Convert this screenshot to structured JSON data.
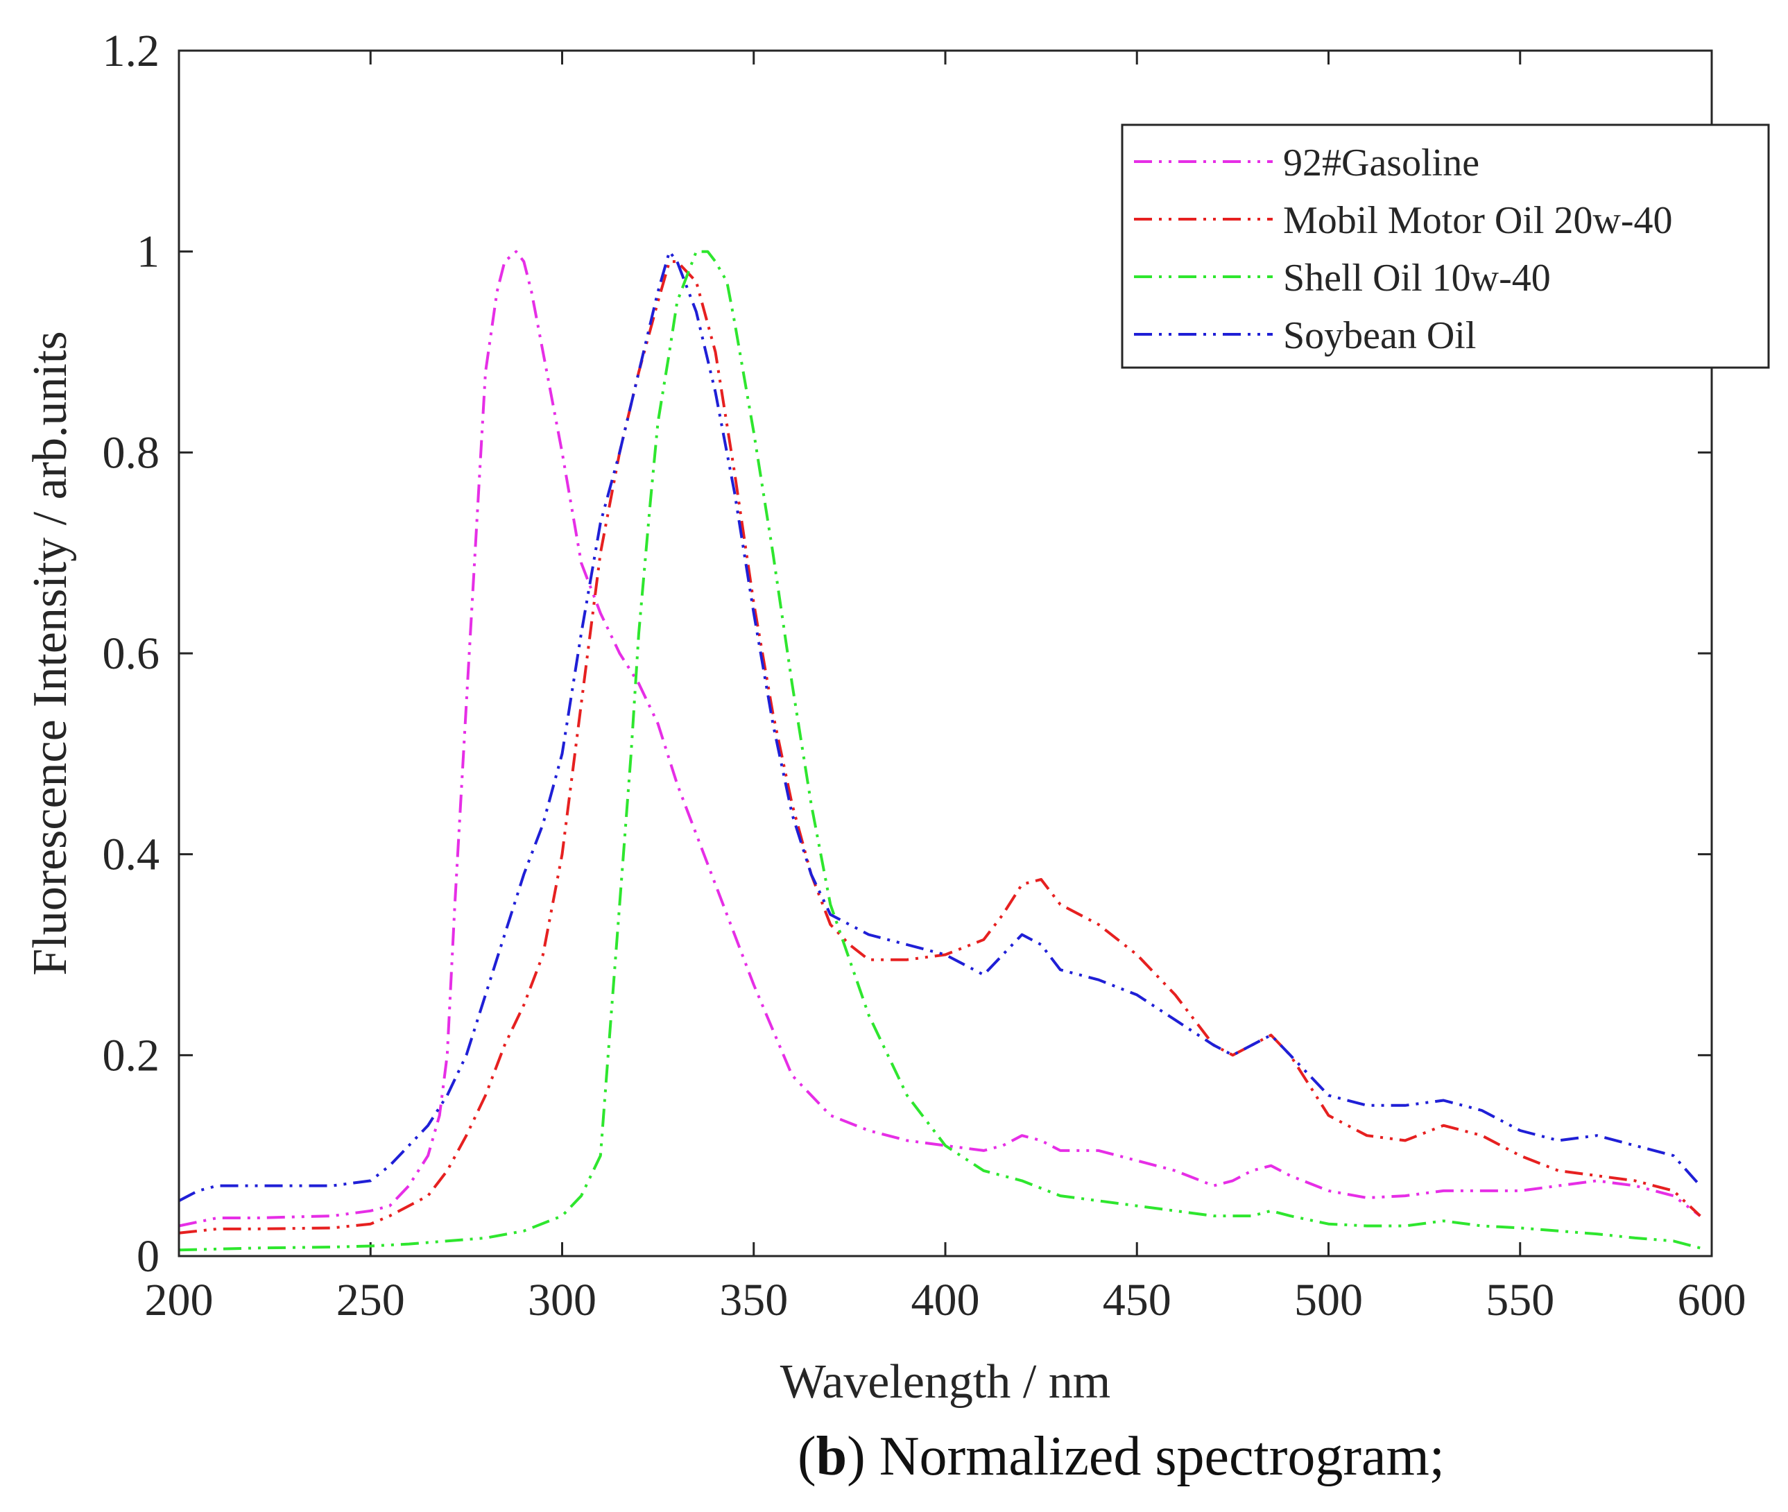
{
  "chart_data": {
    "type": "line",
    "title": "",
    "xlabel": "Wavelength / nm",
    "ylabel": "Fluorescence Intensity / arb.units",
    "xlim": [
      200,
      600
    ],
    "ylim": [
      0,
      1.2
    ],
    "xticks": [
      200,
      250,
      300,
      350,
      400,
      450,
      500,
      550,
      600
    ],
    "xtick_labels": [
      "200",
      "250",
      "300",
      "350",
      "400",
      "450",
      "500",
      "550",
      "600"
    ],
    "yticks": [
      0,
      0.2,
      0.4,
      0.6,
      0.8,
      1,
      1.2
    ],
    "ytick_labels": [
      "0",
      "0.2",
      "0.4",
      "0.6",
      "0.8",
      "1",
      "1.2"
    ],
    "grid": false,
    "legend_position": "top-right",
    "series": [
      {
        "name": "92#Gasoline",
        "color": "#e62ee6",
        "x": [
          200,
          210,
          220,
          240,
          250,
          255,
          260,
          265,
          268,
          270,
          272,
          275,
          280,
          283,
          285,
          288,
          290,
          292,
          295,
          300,
          305,
          310,
          315,
          320,
          325,
          330,
          340,
          350,
          360,
          370,
          380,
          390,
          400,
          410,
          415,
          420,
          425,
          430,
          440,
          450,
          460,
          470,
          475,
          480,
          485,
          490,
          500,
          510,
          520,
          530,
          540,
          550,
          560,
          570,
          580,
          590,
          597
        ],
        "values": [
          0.03,
          0.038,
          0.038,
          0.04,
          0.045,
          0.05,
          0.07,
          0.1,
          0.14,
          0.2,
          0.35,
          0.55,
          0.88,
          0.96,
          0.99,
          1.0,
          0.99,
          0.96,
          0.9,
          0.8,
          0.69,
          0.64,
          0.6,
          0.57,
          0.53,
          0.47,
          0.37,
          0.27,
          0.18,
          0.14,
          0.125,
          0.115,
          0.11,
          0.105,
          0.11,
          0.12,
          0.115,
          0.105,
          0.105,
          0.095,
          0.085,
          0.07,
          0.075,
          0.085,
          0.09,
          0.08,
          0.065,
          0.058,
          0.06,
          0.065,
          0.065,
          0.065,
          0.07,
          0.075,
          0.07,
          0.06,
          0.04
        ]
      },
      {
        "name": "Mobil Motor Oil 20w-40",
        "color": "#e62020",
        "x": [
          200,
          210,
          220,
          240,
          250,
          255,
          260,
          265,
          270,
          275,
          280,
          285,
          290,
          295,
          300,
          305,
          310,
          315,
          320,
          325,
          328,
          330,
          335,
          340,
          345,
          350,
          355,
          360,
          365,
          370,
          375,
          380,
          390,
          400,
          410,
          415,
          420,
          425,
          430,
          440,
          450,
          460,
          470,
          475,
          480,
          485,
          490,
          500,
          510,
          520,
          530,
          540,
          550,
          560,
          570,
          580,
          590,
          597
        ],
        "values": [
          0.023,
          0.027,
          0.027,
          0.028,
          0.032,
          0.04,
          0.05,
          0.06,
          0.085,
          0.12,
          0.16,
          0.21,
          0.25,
          0.3,
          0.4,
          0.55,
          0.7,
          0.8,
          0.88,
          0.95,
          0.99,
          0.99,
          0.97,
          0.9,
          0.78,
          0.65,
          0.54,
          0.45,
          0.38,
          0.33,
          0.31,
          0.295,
          0.295,
          0.3,
          0.315,
          0.34,
          0.37,
          0.375,
          0.35,
          0.33,
          0.3,
          0.26,
          0.21,
          0.2,
          0.21,
          0.22,
          0.2,
          0.14,
          0.12,
          0.115,
          0.13,
          0.12,
          0.1,
          0.085,
          0.08,
          0.075,
          0.065,
          0.04
        ]
      },
      {
        "name": "Shell Oil 10w-40",
        "color": "#2ee62e",
        "x": [
          200,
          220,
          240,
          250,
          260,
          270,
          280,
          290,
          300,
          305,
          310,
          312,
          315,
          318,
          320,
          323,
          325,
          328,
          330,
          333,
          335,
          338,
          340,
          343,
          345,
          350,
          355,
          360,
          365,
          370,
          380,
          390,
          400,
          410,
          420,
          430,
          440,
          450,
          460,
          470,
          475,
          480,
          485,
          490,
          500,
          510,
          520,
          530,
          540,
          550,
          560,
          570,
          580,
          590,
          597
        ],
        "values": [
          0.006,
          0.008,
          0.009,
          0.01,
          0.012,
          0.015,
          0.018,
          0.025,
          0.04,
          0.06,
          0.1,
          0.2,
          0.35,
          0.5,
          0.62,
          0.75,
          0.83,
          0.9,
          0.95,
          0.98,
          1.0,
          1.0,
          0.99,
          0.97,
          0.93,
          0.82,
          0.7,
          0.57,
          0.45,
          0.35,
          0.24,
          0.16,
          0.11,
          0.085,
          0.075,
          0.06,
          0.055,
          0.05,
          0.045,
          0.04,
          0.04,
          0.04,
          0.045,
          0.04,
          0.032,
          0.03,
          0.03,
          0.035,
          0.03,
          0.028,
          0.025,
          0.022,
          0.018,
          0.015,
          0.008
        ]
      },
      {
        "name": "Soybean Oil",
        "color": "#1f1fd6",
        "x": [
          200,
          205,
          210,
          220,
          240,
          250,
          255,
          260,
          265,
          270,
          275,
          280,
          285,
          290,
          295,
          300,
          305,
          310,
          315,
          320,
          325,
          328,
          330,
          335,
          340,
          345,
          350,
          355,
          360,
          365,
          370,
          380,
          390,
          400,
          410,
          415,
          420,
          425,
          430,
          440,
          450,
          460,
          470,
          475,
          480,
          485,
          490,
          500,
          510,
          520,
          530,
          540,
          550,
          560,
          570,
          580,
          590,
          597
        ],
        "values": [
          0.055,
          0.065,
          0.07,
          0.07,
          0.07,
          0.075,
          0.09,
          0.11,
          0.13,
          0.16,
          0.2,
          0.26,
          0.32,
          0.38,
          0.43,
          0.5,
          0.62,
          0.73,
          0.8,
          0.88,
          0.96,
          1.0,
          0.99,
          0.94,
          0.86,
          0.76,
          0.64,
          0.53,
          0.44,
          0.38,
          0.34,
          0.32,
          0.31,
          0.3,
          0.28,
          0.3,
          0.32,
          0.31,
          0.285,
          0.275,
          0.26,
          0.235,
          0.21,
          0.2,
          0.21,
          0.22,
          0.2,
          0.16,
          0.15,
          0.15,
          0.155,
          0.145,
          0.125,
          0.115,
          0.12,
          0.11,
          0.1,
          0.07
        ]
      }
    ]
  },
  "caption": {
    "letter": "b",
    "text": "Normalized spectrogram;"
  }
}
